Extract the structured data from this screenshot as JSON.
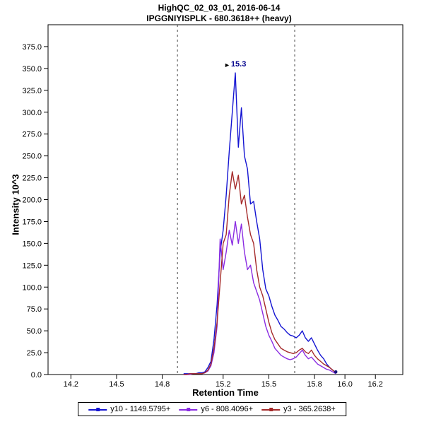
{
  "chart_data": {
    "type": "line",
    "title": "HighQC_02_03_01, 2016-06-14",
    "subtitle": "IPGGNIYISPLK - 680.3618++ (heavy)",
    "xlabel": "Retention Time",
    "ylabel": "Intensity 10^3",
    "xlim": [
      14.05,
      16.38
    ],
    "ylim": [
      0,
      400
    ],
    "x_ticks": [
      "14.2",
      "14.5",
      "14.8",
      "15.2",
      "15.5",
      "15.8",
      "16.0",
      "16.2"
    ],
    "y_tick_step": 25,
    "y_tick_max": 375,
    "grid": false,
    "legend_position": "bottom",
    "boundary_lines_x": [
      14.9,
      15.67
    ],
    "annotation": {
      "label": "15.3",
      "marker": "►",
      "x": 15.28,
      "y": 345
    },
    "x": [
      14.94,
      14.96,
      14.98,
      15.0,
      15.02,
      15.04,
      15.06,
      15.08,
      15.1,
      15.12,
      15.14,
      15.16,
      15.18,
      15.2,
      15.22,
      15.24,
      15.26,
      15.28,
      15.3,
      15.32,
      15.34,
      15.36,
      15.38,
      15.4,
      15.42,
      15.44,
      15.46,
      15.48,
      15.5,
      15.52,
      15.54,
      15.56,
      15.58,
      15.6,
      15.62,
      15.64,
      15.66,
      15.68,
      15.7,
      15.72,
      15.74,
      15.76,
      15.78,
      15.8,
      15.82,
      15.84,
      15.86,
      15.88,
      15.9,
      15.92,
      15.94
    ],
    "series": [
      {
        "id": "y10",
        "name": "y10 - 1149.5795+",
        "color": "#1414d2",
        "y": [
          1,
          1,
          1,
          1,
          1,
          2,
          2,
          3,
          8,
          15,
          40,
          80,
          140,
          165,
          205,
          255,
          300,
          345,
          260,
          305,
          250,
          235,
          195,
          198,
          175,
          155,
          120,
          98,
          90,
          78,
          68,
          62,
          55,
          52,
          48,
          45,
          44,
          42,
          45,
          50,
          42,
          38,
          42,
          35,
          28,
          22,
          18,
          12,
          8,
          5,
          2
        ]
      },
      {
        "id": "y6",
        "name": "y6 - 808.4096+",
        "color": "#8a2be2",
        "y": [
          0,
          0,
          0,
          1,
          1,
          1,
          1,
          2,
          4,
          10,
          25,
          55,
          155,
          120,
          140,
          165,
          148,
          175,
          150,
          172,
          140,
          120,
          125,
          105,
          95,
          85,
          70,
          55,
          45,
          38,
          30,
          26,
          22,
          20,
          18,
          17,
          18,
          20,
          24,
          28,
          22,
          18,
          20,
          16,
          12,
          10,
          8,
          6,
          5,
          3,
          1
        ]
      },
      {
        "id": "y3",
        "name": "y3 - 365.2638+",
        "color": "#a52a2a",
        "y": [
          0,
          0,
          1,
          1,
          1,
          1,
          1,
          2,
          5,
          12,
          30,
          60,
          105,
          150,
          160,
          205,
          232,
          212,
          228,
          195,
          205,
          180,
          160,
          150,
          120,
          100,
          90,
          75,
          60,
          48,
          40,
          35,
          30,
          28,
          26,
          25,
          24,
          25,
          28,
          30,
          26,
          24,
          28,
          22,
          18,
          15,
          12,
          10,
          8,
          5,
          2
        ]
      }
    ]
  }
}
